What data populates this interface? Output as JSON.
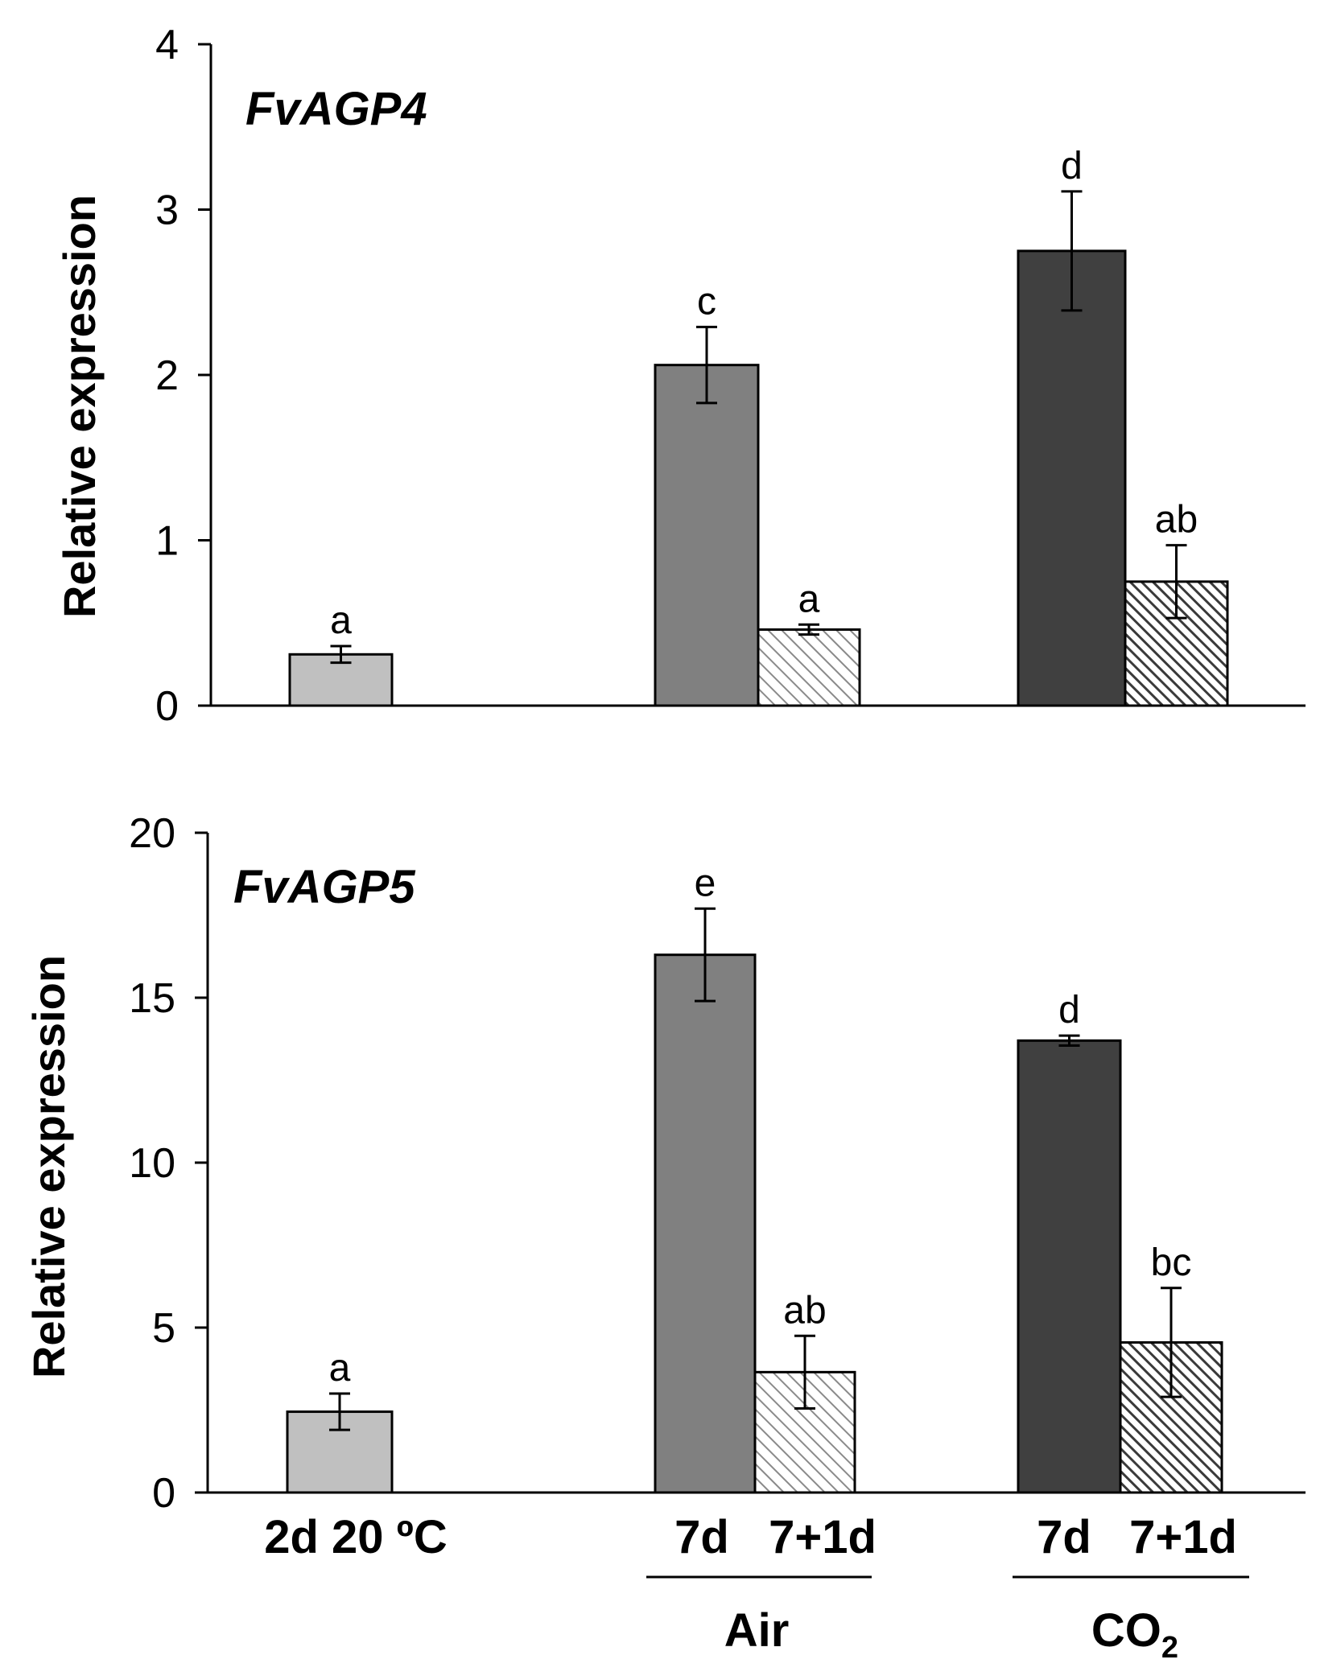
{
  "chart_data": [
    {
      "type": "bar",
      "title": "FvAGP4",
      "ylabel": "Relative expression",
      "xlabel": "",
      "ylim": [
        0,
        4
      ],
      "yticks": [
        "0",
        "1",
        "2",
        "3",
        "4"
      ],
      "categories": [
        "2d 20 ºC",
        "Air 7d",
        "Air 7+1d",
        "CO2 7d",
        "CO2 7+1d"
      ],
      "values": [
        0.31,
        2.06,
        0.46,
        2.75,
        0.75
      ],
      "errors": [
        0.05,
        0.23,
        0.03,
        0.36,
        0.22
      ],
      "letters": [
        "a",
        "c",
        "a",
        "d",
        "ab"
      ]
    },
    {
      "type": "bar",
      "title": "FvAGP5",
      "ylabel": "Relative expression",
      "xlabel": "",
      "ylim": [
        0,
        20
      ],
      "yticks": [
        "0",
        "5",
        "10",
        "15",
        "20"
      ],
      "categories": [
        "2d 20 ºC",
        "Air 7d",
        "Air 7+1d",
        "CO2 7d",
        "CO2 7+1d"
      ],
      "values": [
        2.45,
        16.3,
        3.65,
        13.7,
        4.55
      ],
      "errors": [
        0.55,
        1.4,
        1.1,
        0.15,
        1.65
      ],
      "letters": [
        "a",
        "e",
        "ab",
        "d",
        "bc"
      ]
    }
  ],
  "x_axis": {
    "control_label": "2d 20 ºC",
    "air_7d": "7d",
    "air_7p1d": "7+1d",
    "co2_7d": "7d",
    "co2_7p1d": "7+1d",
    "group_air": "Air",
    "group_co2_base": "CO",
    "group_co2_sub": "2"
  },
  "colors": {
    "control": "#c0c0c0",
    "air_7d": "#808080",
    "co2_7d": "#404040",
    "air_hatch": "#8a8a8a",
    "co2_hatch": "#3a3a3a"
  }
}
